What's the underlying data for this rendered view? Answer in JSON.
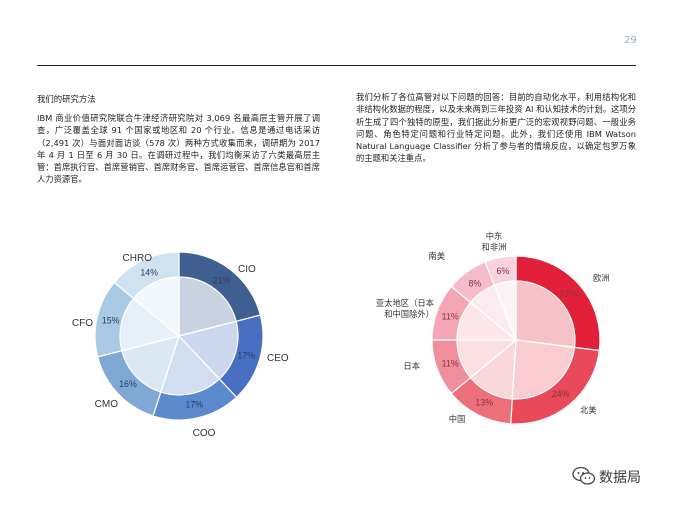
{
  "page": {
    "page_number": "29",
    "heading": "我们的研究方法",
    "left_paragraph": "IBM 商业价值研究院联合牛津经济研究院对 3,069 名最高层主管开展了调查，广泛覆盖全球 91 个国家或地区和 20 个行业。信息是通过电话采访（2,491 次）与面对面访谈（578 次）两种方式收集而来，调研期为 2017 年 4 月 1 日至 6 月 30 日。在调研过程中，我们均衡采访了六类最高层主管：首席执行官、首席营销官、首席财务官、首席运营官、首席信息官和首席人力资源官。",
    "right_paragraph": "我们分析了各位高管对以下问题的回答：目前的自动化水平，利用结构化和非结构化数据的程度，以及未来两到三年投资 AI 和认知技术的计划。这项分析生成了四个独特的原型，我们据此分析更广泛的宏观视野问题、一般业务问题、角色特定问题和行业特定问题。此外，我们还使用 IBM Watson Natural Language Classifier 分析了参与者的情境反应，以确定包罗万象的主题和关注重点。"
  },
  "chart_data": [
    {
      "type": "pie",
      "title": "",
      "slices": [
        {
          "label": "CIO",
          "value": 21,
          "value_label": "21%",
          "color": "#3f5f91"
        },
        {
          "label": "CEO",
          "value": 17,
          "value_label": "17%",
          "color": "#4770c2"
        },
        {
          "label": "COO",
          "value": 17,
          "value_label": "17%",
          "color": "#5a8acd"
        },
        {
          "label": "CMO",
          "value": 16,
          "value_label": "16%",
          "color": "#7fa9d4"
        },
        {
          "label": "CFO",
          "value": 15,
          "value_label": "15%",
          "color": "#a9c9e4"
        },
        {
          "label": "CHRO",
          "value": 14,
          "value_label": "14%",
          "color": "#cfe2f0"
        }
      ]
    },
    {
      "type": "pie",
      "title": "",
      "slices": [
        {
          "label": "欧洲",
          "value": 27,
          "value_label": "27%",
          "color": "#e2203a"
        },
        {
          "label": "北美",
          "value": 24,
          "value_label": "24%",
          "color": "#e84a5a"
        },
        {
          "label": "中国",
          "value": 13,
          "value_label": "13%",
          "color": "#ec6f7a"
        },
        {
          "label": "日本",
          "value": 11,
          "value_label": "11%",
          "color": "#f08e9b"
        },
        {
          "label": "亚太地区（日本和中国除外）",
          "value": 11,
          "value_label": "11%",
          "color": "#f3a7b6"
        },
        {
          "label": "南美",
          "value": 8,
          "value_label": "8%",
          "color": "#f5bccc"
        },
        {
          "label": "中东和非洲",
          "value": 6,
          "value_label": "6%",
          "color": "#f8d3df"
        }
      ]
    }
  ],
  "brand": {
    "label": "数据局",
    "icon": "wechat-icon"
  }
}
